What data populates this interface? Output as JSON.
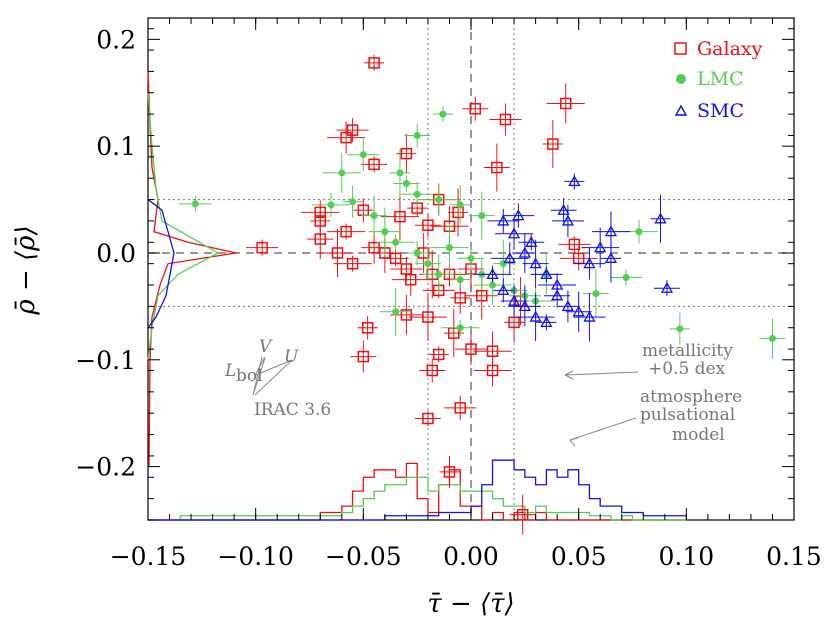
{
  "chart_data": {
    "type": "scatter",
    "title": "",
    "xlabel": "τ̄ − ⟨τ̄⟩",
    "ylabel": "ρ̄ − ⟨ρ̄⟩",
    "xlim": [
      -0.15,
      0.15
    ],
    "ylim": [
      -0.25,
      0.22
    ],
    "x_ticks": [
      -0.15,
      -0.1,
      -0.05,
      0.0,
      0.05,
      0.1,
      0.15
    ],
    "x_tick_labels": [
      "−0.15",
      "−0.10",
      "−0.05",
      "0.00",
      "0.05",
      "0.10",
      "0.15"
    ],
    "y_ticks": [
      -0.2,
      -0.1,
      0.0,
      0.1,
      0.2
    ],
    "y_tick_labels": [
      "−0.2",
      "−0.1",
      "0.0",
      "0.1",
      "0.2"
    ],
    "grid": false,
    "reference_lines": {
      "vertical": [
        -0.02,
        0.0,
        0.02
      ],
      "horizontal": [
        -0.05,
        0.0,
        0.05
      ]
    },
    "legend": {
      "position": "top-right",
      "entries": [
        {
          "label": "Galaxy",
          "marker": "square",
          "color": "#ee1111"
        },
        {
          "label": "LMC",
          "marker": "circle",
          "color": "#55cc55"
        },
        {
          "label": "SMC",
          "marker": "triangle",
          "color": "#1111ee"
        }
      ]
    },
    "series": [
      {
        "name": "Galaxy",
        "color": "#ee1111",
        "marker": "square",
        "points": [
          [
            -0.045,
            0.178
          ],
          [
            0.002,
            0.135
          ],
          [
            0.016,
            0.125
          ],
          [
            0.044,
            0.14
          ],
          [
            0.038,
            0.102
          ],
          [
            -0.045,
            0.083
          ],
          [
            -0.055,
            0.115
          ],
          [
            -0.058,
            0.108
          ],
          [
            -0.03,
            0.093
          ],
          [
            0.012,
            0.08
          ],
          [
            -0.097,
            0.005
          ],
          [
            -0.07,
            0.038
          ],
          [
            -0.07,
            0.03
          ],
          [
            -0.07,
            0.013
          ],
          [
            -0.062,
            0.0
          ],
          [
            -0.058,
            0.02
          ],
          [
            -0.05,
            0.04
          ],
          [
            -0.045,
            0.005
          ],
          [
            -0.04,
            0.0
          ],
          [
            -0.033,
            0.034
          ],
          [
            -0.025,
            0.042
          ],
          [
            -0.02,
            0.026
          ],
          [
            -0.015,
            0.05
          ],
          [
            -0.01,
            0.025
          ],
          [
            -0.006,
            0.038
          ],
          [
            -0.035,
            -0.005
          ],
          [
            -0.03,
            -0.015
          ],
          [
            -0.028,
            -0.025
          ],
          [
            -0.022,
            0.0
          ],
          [
            -0.018,
            -0.02
          ],
          [
            -0.015,
            -0.035
          ],
          [
            -0.01,
            -0.02
          ],
          [
            -0.005,
            -0.042
          ],
          [
            0.0,
            -0.015
          ],
          [
            0.005,
            -0.04
          ],
          [
            -0.055,
            -0.01
          ],
          [
            -0.048,
            -0.07
          ],
          [
            -0.05,
            -0.097
          ],
          [
            -0.03,
            -0.058
          ],
          [
            -0.02,
            -0.06
          ],
          [
            -0.015,
            -0.095
          ],
          [
            -0.018,
            -0.11
          ],
          [
            0.0,
            -0.09
          ],
          [
            0.01,
            -0.092
          ],
          [
            -0.008,
            -0.075
          ],
          [
            -0.02,
            -0.155
          ],
          [
            -0.005,
            -0.145
          ],
          [
            0.01,
            -0.11
          ],
          [
            0.02,
            -0.065
          ],
          [
            0.023,
            -0.045
          ],
          [
            0.048,
            0.008
          ],
          [
            0.05,
            -0.005
          ],
          [
            -0.01,
            -0.205
          ],
          [
            0.024,
            -0.245
          ]
        ]
      },
      {
        "name": "LMC",
        "color": "#55cc55",
        "marker": "circle",
        "points": [
          [
            -0.013,
            0.13
          ],
          [
            -0.025,
            0.11
          ],
          [
            -0.05,
            0.092
          ],
          [
            -0.06,
            0.075
          ],
          [
            -0.033,
            0.075
          ],
          [
            -0.03,
            0.065
          ],
          [
            -0.025,
            0.055
          ],
          [
            -0.015,
            0.05
          ],
          [
            -0.005,
            0.045
          ],
          [
            0.005,
            0.035
          ],
          [
            -0.128,
            0.046
          ],
          [
            -0.065,
            0.045
          ],
          [
            -0.055,
            0.048
          ],
          [
            -0.045,
            0.035
          ],
          [
            -0.04,
            0.02
          ],
          [
            -0.035,
            0.01
          ],
          [
            -0.025,
            0.0
          ],
          [
            -0.02,
            -0.01
          ],
          [
            -0.015,
            -0.02
          ],
          [
            -0.01,
            0.005
          ],
          [
            -0.005,
            -0.025
          ],
          [
            0.0,
            -0.005
          ],
          [
            0.005,
            -0.02
          ],
          [
            0.01,
            -0.03
          ],
          [
            0.015,
            -0.01
          ],
          [
            0.02,
            -0.035
          ],
          [
            0.025,
            -0.04
          ],
          [
            0.03,
            -0.045
          ],
          [
            0.035,
            -0.02
          ],
          [
            0.058,
            -0.038
          ],
          [
            0.072,
            -0.023
          ],
          [
            0.078,
            0.02
          ],
          [
            0.097,
            -0.071
          ],
          [
            0.14,
            -0.08
          ],
          [
            -0.035,
            -0.055
          ],
          [
            -0.005,
            -0.07
          ]
        ]
      },
      {
        "name": "SMC",
        "color": "#1111ee",
        "marker": "triangle",
        "points": [
          [
            0.048,
            0.067
          ],
          [
            0.043,
            0.04
          ],
          [
            0.045,
            0.03
          ],
          [
            0.065,
            0.02
          ],
          [
            0.088,
            0.032
          ],
          [
            0.091,
            -0.033
          ],
          [
            0.015,
            0.03
          ],
          [
            0.02,
            0.018
          ],
          [
            0.025,
            0.0
          ],
          [
            0.03,
            -0.01
          ],
          [
            0.035,
            -0.02
          ],
          [
            0.04,
            -0.03
          ],
          [
            0.045,
            -0.05
          ],
          [
            0.05,
            -0.055
          ],
          [
            0.055,
            -0.06
          ],
          [
            0.01,
            -0.02
          ],
          [
            0.015,
            -0.035
          ],
          [
            0.02,
            -0.045
          ],
          [
            0.025,
            -0.05
          ],
          [
            0.03,
            -0.06
          ],
          [
            0.035,
            -0.065
          ],
          [
            0.04,
            -0.04
          ],
          [
            0.055,
            -0.01
          ],
          [
            0.06,
            0.005
          ],
          [
            0.065,
            -0.005
          ],
          [
            0.028,
            0.01
          ],
          [
            0.022,
            0.035
          ],
          [
            0.018,
            -0.005
          ]
        ]
      }
    ],
    "histograms": {
      "x_bottom": {
        "bins": [
          -0.15,
          -0.145,
          -0.14,
          -0.135,
          -0.13,
          -0.125,
          -0.12,
          -0.115,
          -0.11,
          -0.105,
          -0.1,
          -0.095,
          -0.09,
          -0.085,
          -0.08,
          -0.075,
          -0.07,
          -0.065,
          -0.06,
          -0.055,
          -0.05,
          -0.045,
          -0.04,
          -0.035,
          -0.03,
          -0.025,
          -0.02,
          -0.015,
          -0.01,
          -0.005,
          0.0,
          0.005,
          0.01,
          0.015,
          0.02,
          0.025,
          0.03,
          0.035,
          0.04,
          0.045,
          0.05,
          0.055,
          0.06,
          0.065,
          0.07,
          0.075,
          0.08,
          0.085,
          0.09,
          0.095,
          0.1
        ],
        "Galaxy": [
          0,
          0,
          0,
          0,
          0,
          0,
          0,
          0,
          0,
          0,
          0,
          0,
          0,
          0,
          0,
          0,
          0.007,
          0.007,
          0.013,
          0.027,
          0.04,
          0.047,
          0.047,
          0.04,
          0.053,
          0.02,
          0.007,
          0.033,
          0.047,
          0.013,
          0.013,
          0.0,
          0.007,
          0.0,
          0.007,
          0.0,
          0.007,
          0.0,
          0.0,
          0,
          0,
          0,
          0,
          0,
          0,
          0,
          0,
          0,
          0,
          0
        ],
        "LMC": [
          0,
          0,
          0,
          0.004,
          0.004,
          0.004,
          0.004,
          0.004,
          0.004,
          0.004,
          0.004,
          0.004,
          0.004,
          0.004,
          0.004,
          0.004,
          0.004,
          0.004,
          0.007,
          0.013,
          0.02,
          0.027,
          0.033,
          0.033,
          0.04,
          0.04,
          0.027,
          0.033,
          0.033,
          0.027,
          0.027,
          0.027,
          0.02,
          0.013,
          0.013,
          0.007,
          0.013,
          0.007,
          0.007,
          0.007,
          0.007,
          0.004,
          0.004,
          0.0,
          0.004,
          0,
          0,
          0,
          0,
          0
        ],
        "SMC": [
          0,
          0,
          0,
          0,
          0,
          0,
          0,
          0,
          0,
          0,
          0,
          0,
          0,
          0,
          0,
          0,
          0,
          0,
          0,
          0,
          0,
          0,
          0.004,
          0.004,
          0.004,
          0.004,
          0.004,
          0.007,
          0.007,
          0.007,
          0.013,
          0.033,
          0.056,
          0.056,
          0.047,
          0.04,
          0.033,
          0.047,
          0.04,
          0.047,
          0.033,
          0.02,
          0.013,
          0.013,
          0.007,
          0.007,
          0.004,
          0.004,
          0.004,
          0.004
        ]
      }
    },
    "annotations": [
      {
        "text": "metallicity",
        "id": "ann-metallicity"
      },
      {
        "text": "+0.5 dex",
        "id": "ann-dex"
      },
      {
        "text": "atmosphere",
        "id": "ann-atmosphere"
      },
      {
        "text": "pulsational",
        "id": "ann-pulsational"
      },
      {
        "text": "model",
        "id": "ann-model"
      },
      {
        "text": "IRAC 3.6",
        "id": "ann-irac"
      },
      {
        "text": "V",
        "id": "ann-v"
      },
      {
        "text": "U",
        "id": "ann-u"
      },
      {
        "text": "L",
        "id": "ann-lbol"
      },
      {
        "text": "bol",
        "id": "ann-lbol-sub"
      }
    ]
  }
}
